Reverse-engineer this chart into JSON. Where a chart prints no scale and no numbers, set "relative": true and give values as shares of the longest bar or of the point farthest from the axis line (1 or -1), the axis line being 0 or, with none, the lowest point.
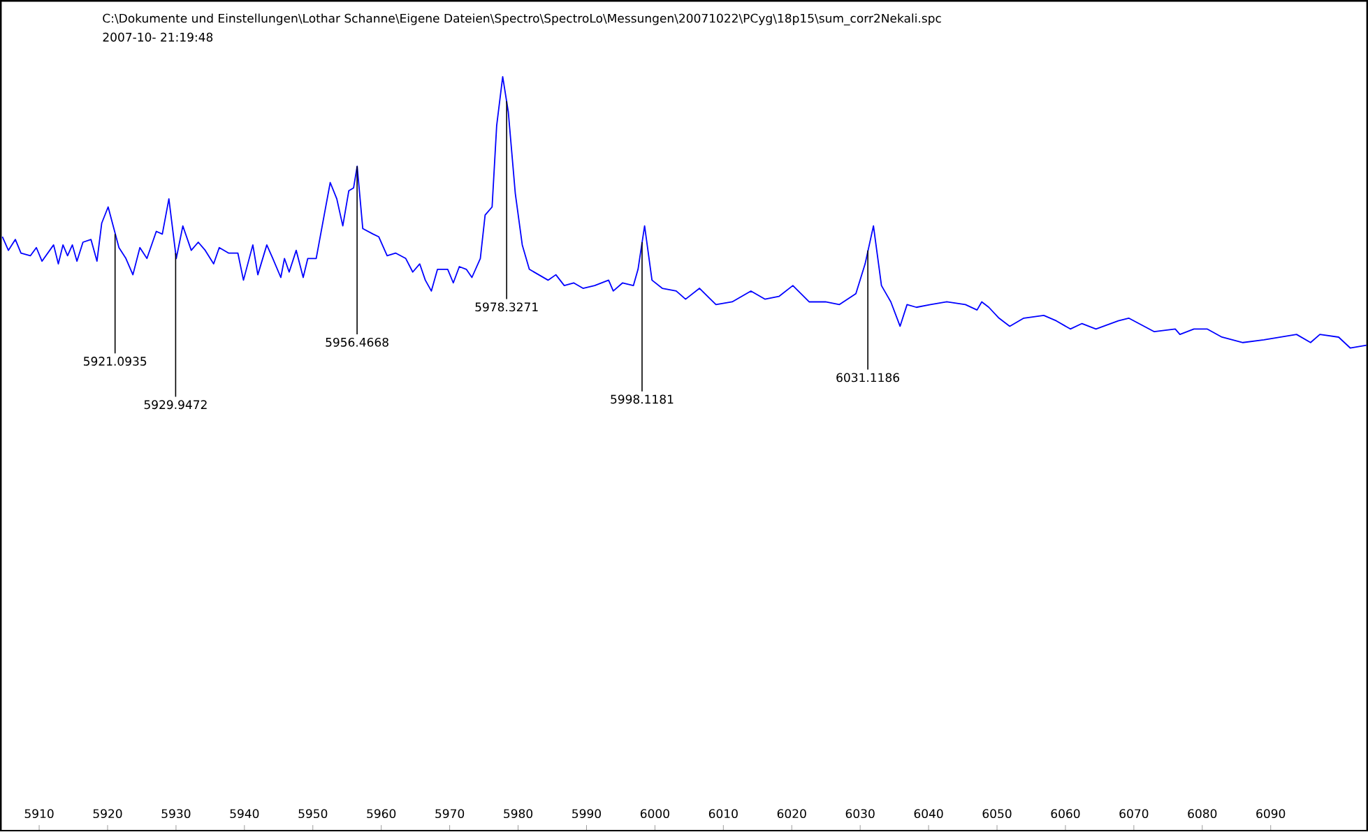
{
  "chart_data": {
    "type": "line",
    "title": "C:\\Dokumente und Einstellungen\\Lothar Schanne\\Eigene Dateien\\Spectro\\SpectroLo\\Messungen\\20071022\\PCyg\\18p15\\sum_corr2Nekali.spc",
    "subtitle": "2007-10- 21:19:48",
    "relative": true,
    "color": "#0000ff",
    "xlim": [
      5904.4,
      6104.1
    ],
    "xticks": [
      5910,
      5920,
      5930,
      5940,
      5950,
      5960,
      5970,
      5980,
      5990,
      6000,
      6010,
      6020,
      6030,
      6040,
      6050,
      6060,
      6070,
      6080,
      6090
    ],
    "x": [
      5904.62,
      5905.5,
      5906.52,
      5907.34,
      5908.71,
      5909.59,
      5910.41,
      5912.11,
      5912.8,
      5913.48,
      5914.15,
      5914.85,
      5915.52,
      5916.4,
      5917.57,
      5918.45,
      5919.14,
      5920.08,
      5921.66,
      5922.68,
      5923.7,
      5924.72,
      5925.75,
      5927.12,
      5928.0,
      5928.96,
      5930.04,
      5931.0,
      5932.23,
      5933.25,
      5934.27,
      5935.5,
      5936.32,
      5937.67,
      5939.04,
      5939.86,
      5941.23,
      5941.96,
      5943.27,
      5944.15,
      5945.32,
      5945.85,
      5946.54,
      5947.57,
      5948.59,
      5949.26,
      5950.49,
      5951.66,
      5952.54,
      5953.5,
      5954.38,
      5955.26,
      5955.95,
      5956.48,
      5957.3,
      5958.81,
      5959.63,
      5960.86,
      5962.09,
      5963.58,
      5964.6,
      5965.62,
      5966.44,
      5967.32,
      5968.22,
      5969.71,
      5970.53,
      5971.41,
      5972.43,
      5973.25,
      5974.48,
      5975.18,
      5976.2,
      5976.87,
      5977.75,
      5978.57,
      5979.59,
      5980.61,
      5981.64,
      5983.01,
      5984.38,
      5985.52,
      5986.75,
      5988.12,
      5989.49,
      5991.19,
      5993.23,
      5993.91,
      5995.28,
      5996.85,
      5997.53,
      5998.49,
      5999.57,
      6001.07,
      6003.11,
      6004.48,
      6006.52,
      6008.92,
      6011.29,
      6014.03,
      6016.07,
      6018.12,
      6020.16,
      6022.54,
      6024.93,
      6026.97,
      6029.37,
      6030.72,
      6031.94,
      6033.11,
      6034.48,
      6035.83,
      6036.85,
      6038.22,
      6040.27,
      6042.66,
      6045.38,
      6047.08,
      6047.77,
      6048.8,
      6050.29,
      6051.86,
      6053.91,
      6056.83,
      6058.67,
      6060.72,
      6062.42,
      6064.46,
      6067.73,
      6069.25,
      6072.99,
      6076.05,
      6076.73,
      6078.78,
      6080.7,
      6082.87,
      6085.94,
      6089.0,
      6093.78,
      6095.83,
      6097.19,
      6099.93,
      6101.62,
      6104.0
    ],
    "values": [
      0.41,
      0.36,
      0.4,
      0.35,
      0.34,
      0.37,
      0.32,
      0.38,
      0.31,
      0.38,
      0.34,
      0.38,
      0.32,
      0.39,
      0.4,
      0.32,
      0.46,
      0.52,
      0.37,
      0.33,
      0.27,
      0.37,
      0.33,
      0.43,
      0.42,
      0.55,
      0.33,
      0.45,
      0.36,
      0.39,
      0.36,
      0.31,
      0.37,
      0.35,
      0.35,
      0.25,
      0.38,
      0.27,
      0.38,
      0.33,
      0.26,
      0.33,
      0.28,
      0.36,
      0.26,
      0.33,
      0.33,
      0.49,
      0.61,
      0.55,
      0.45,
      0.58,
      0.59,
      0.67,
      0.44,
      0.42,
      0.41,
      0.34,
      0.35,
      0.33,
      0.28,
      0.31,
      0.25,
      0.21,
      0.29,
      0.29,
      0.24,
      0.3,
      0.29,
      0.26,
      0.33,
      0.49,
      0.52,
      0.82,
      1,
      0.87,
      0.57,
      0.38,
      0.29,
      0.27,
      0.25,
      0.27,
      0.23,
      0.24,
      0.22,
      0.23,
      0.25,
      0.21,
      0.24,
      0.23,
      0.29,
      0.45,
      0.25,
      0.22,
      0.21,
      0.18,
      0.22,
      0.16,
      0.17,
      0.21,
      0.18,
      0.19,
      0.23,
      0.17,
      0.17,
      0.16,
      0.2,
      0.31,
      0.45,
      0.23,
      0.17,
      0.08,
      0.16,
      0.15,
      0.16,
      0.17,
      0.16,
      0.14,
      0.17,
      0.15,
      0.11,
      0.08,
      0.11,
      0.12,
      0.1,
      0.07,
      0.09,
      0.07,
      0.1,
      0.11,
      0.06,
      0.07,
      0.05,
      0.07,
      0.07,
      0.04,
      0.02,
      0.03,
      0.05,
      0.02,
      0.05,
      0.04,
      0,
      0.01
    ],
    "annotations": [
      {
        "text": "5921.0935",
        "x": 5921.0935,
        "y": 0.42
      },
      {
        "text": "5929.9472",
        "x": 5929.9472,
        "y": 0.35
      },
      {
        "text": "5956.4668",
        "x": 5956.4668,
        "y": 0.67
      },
      {
        "text": "5978.3271",
        "x": 5978.3271,
        "y": 0.91
      },
      {
        "text": "5998.1181",
        "x": 5998.1181,
        "y": 0.39
      },
      {
        "text": "6031.1186",
        "x": 6031.1186,
        "y": 0.36
      }
    ]
  }
}
